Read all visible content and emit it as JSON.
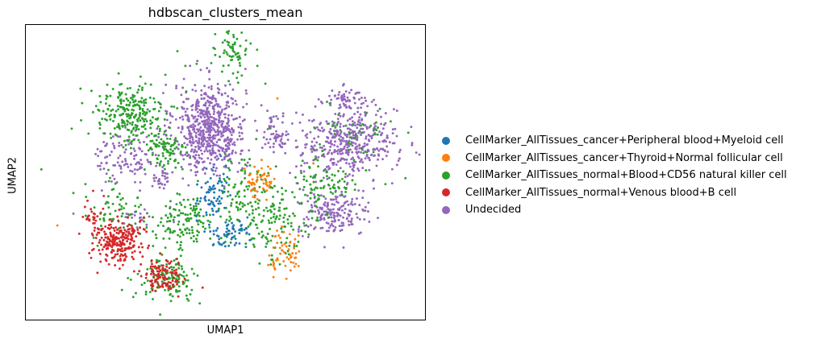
{
  "chart_data": {
    "type": "scatter",
    "title": "hdbscan_clusters_mean",
    "xlabel": "UMAP1",
    "ylabel": "UMAP2",
    "grid": false,
    "ticks": "none",
    "legend_position": "right",
    "xlim": [
      0,
      100
    ],
    "ylim": [
      0,
      100
    ],
    "series": [
      {
        "name": "CellMarker_AllTissues_cancer+Peripheral blood+Myeloid cell",
        "color": "#1f77b4",
        "clusters": [
          {
            "cx": 46.5,
            "cy": 42,
            "sx": 2.5,
            "sy": 6,
            "n": 70
          },
          {
            "cx": 51,
            "cy": 29,
            "sx": 3,
            "sy": 3.5,
            "n": 60
          }
        ]
      },
      {
        "name": "CellMarker_AllTissues_cancer+Thyroid+Normal follicular cell",
        "color": "#ff7f0e",
        "clusters": [
          {
            "cx": 58.5,
            "cy": 47,
            "sx": 2.5,
            "sy": 4,
            "n": 50
          },
          {
            "cx": 64.5,
            "cy": 23,
            "sx": 3,
            "sy": 5,
            "n": 55
          }
        ],
        "outliers": [
          [
            8,
            32
          ],
          [
            72,
            53
          ],
          [
            63,
            75
          ]
        ]
      },
      {
        "name": "CellMarker_AllTissues_normal+Blood+CD56 natural killer cell",
        "color": "#2ca02c",
        "clusters": [
          {
            "cx": 51.5,
            "cy": 90,
            "sx": 2.8,
            "sy": 5,
            "n": 65
          },
          {
            "cx": 26,
            "cy": 70,
            "sx": 6,
            "sy": 7,
            "n": 240
          },
          {
            "cx": 35,
            "cy": 57,
            "sx": 3.5,
            "sy": 5,
            "n": 90
          },
          {
            "cx": 39,
            "cy": 33,
            "sx": 5,
            "sy": 6,
            "n": 120
          },
          {
            "cx": 35.5,
            "cy": 14,
            "sx": 5,
            "sy": 5,
            "n": 130
          },
          {
            "cx": 55,
            "cy": 40,
            "sx": 7,
            "sy": 10,
            "n": 140
          },
          {
            "cx": 64,
            "cy": 32,
            "sx": 4,
            "sy": 8,
            "n": 90
          },
          {
            "cx": 72,
            "cy": 45,
            "sx": 3,
            "sy": 8,
            "n": 60
          },
          {
            "cx": 23,
            "cy": 38,
            "sx": 5,
            "sy": 7,
            "n": 60
          },
          {
            "cx": 84,
            "cy": 65,
            "sx": 6,
            "sy": 6,
            "n": 40
          },
          {
            "cx": 78,
            "cy": 46,
            "sx": 4,
            "sy": 4,
            "n": 30
          }
        ],
        "outliers": [
          [
            4,
            51
          ],
          [
            15,
            46
          ],
          [
            38,
            91
          ],
          [
            40,
            86
          ],
          [
            35,
            83
          ],
          [
            58,
            86
          ],
          [
            60,
            80
          ],
          [
            61,
            65
          ],
          [
            90,
            46
          ],
          [
            95,
            48
          ],
          [
            12,
            43
          ],
          [
            30,
            80
          ]
        ]
      },
      {
        "name": "CellMarker_AllTissues_normal+Venous blood+B cell",
        "color": "#d62728",
        "clusters": [
          {
            "cx": 23,
            "cy": 27,
            "sx": 4,
            "sy": 5,
            "n": 240
          },
          {
            "cx": 17,
            "cy": 36,
            "sx": 1.5,
            "sy": 4,
            "n": 30
          },
          {
            "cx": 34.5,
            "cy": 15,
            "sx": 3.5,
            "sy": 4,
            "n": 110
          }
        ]
      },
      {
        "name": "Undecided",
        "color": "#9467bd",
        "clusters": [
          {
            "cx": 46,
            "cy": 65,
            "sx": 6,
            "sy": 10,
            "n": 620
          },
          {
            "cx": 25.5,
            "cy": 55,
            "sx": 5.5,
            "sy": 6,
            "n": 110
          },
          {
            "cx": 63,
            "cy": 63,
            "sx": 2.2,
            "sy": 4.5,
            "n": 60
          },
          {
            "cx": 80,
            "cy": 75,
            "sx": 3.5,
            "sy": 2.5,
            "n": 55
          },
          {
            "cx": 81,
            "cy": 60,
            "sx": 8,
            "sy": 8,
            "n": 420
          },
          {
            "cx": 77,
            "cy": 36,
            "sx": 6,
            "sy": 5,
            "n": 180
          },
          {
            "cx": 34.5,
            "cy": 48,
            "sx": 2,
            "sy": 2,
            "n": 25
          },
          {
            "cx": 29,
            "cy": 35,
            "sx": 4,
            "sy": 3,
            "n": 20
          }
        ],
        "outliers": [
          [
            12,
            36
          ],
          [
            55,
            85
          ]
        ]
      }
    ]
  }
}
